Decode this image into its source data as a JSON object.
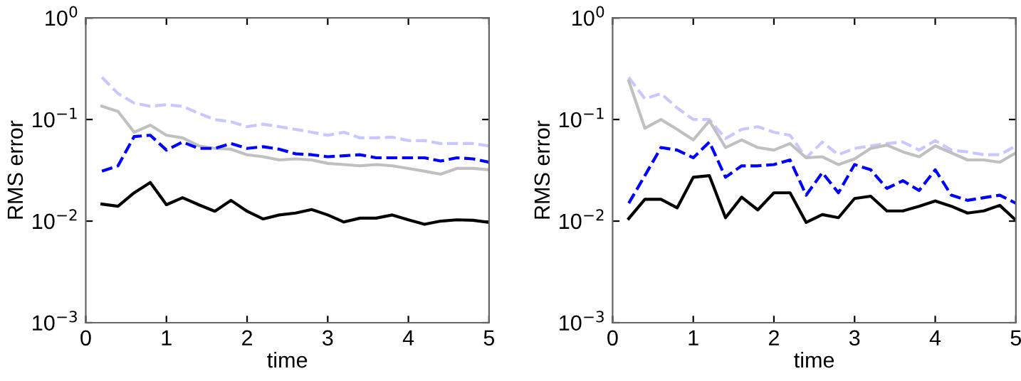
{
  "chart_data": [
    {
      "type": "line",
      "xlabel": "time",
      "ylabel": "RMS error",
      "log": "y",
      "grid": false,
      "x": [
        0.2,
        0.4,
        0.6,
        0.8,
        1.0,
        1.2,
        1.4,
        1.6,
        1.8,
        2.0,
        2.2,
        2.4,
        2.6,
        2.8,
        3.0,
        3.2,
        3.4,
        3.6,
        3.8,
        4.0,
        4.2,
        4.4,
        4.6,
        4.8,
        5.0
      ],
      "xlim": [
        0,
        5
      ],
      "xticks": [
        0,
        1,
        2,
        3,
        4,
        5
      ],
      "ylim": [
        0.001,
        1
      ],
      "yticks": [
        {
          "value": 0.001,
          "label": "10$^{−3}$"
        },
        {
          "value": 0.01,
          "label": "10$^{−2}$"
        },
        {
          "value": 0.1,
          "label": "10$^{−1}$"
        },
        {
          "value": 1,
          "label": "10$^{0}$"
        }
      ],
      "series": [
        {
          "color": "#c8c8ff",
          "line_style": "dashed",
          "values": [
            0.26,
            0.18,
            0.145,
            0.135,
            0.14,
            0.135,
            0.115,
            0.1,
            0.095,
            0.085,
            0.09,
            0.085,
            0.08,
            0.075,
            0.07,
            0.075,
            0.066,
            0.066,
            0.067,
            0.062,
            0.062,
            0.058,
            0.058,
            0.058,
            0.055
          ]
        },
        {
          "color": "#c0c0c0",
          "line_style": "solid",
          "values": [
            0.135,
            0.12,
            0.075,
            0.088,
            0.07,
            0.066,
            0.055,
            0.052,
            0.051,
            0.045,
            0.043,
            0.04,
            0.041,
            0.04,
            0.037,
            0.036,
            0.035,
            0.036,
            0.035,
            0.033,
            0.031,
            0.029,
            0.033,
            0.033,
            0.032
          ]
        },
        {
          "color": "#0000ff",
          "line_style": "dashed",
          "values": [
            0.031,
            0.035,
            0.068,
            0.07,
            0.05,
            0.06,
            0.052,
            0.052,
            0.058,
            0.052,
            0.054,
            0.051,
            0.046,
            0.045,
            0.043,
            0.044,
            0.045,
            0.042,
            0.042,
            0.042,
            0.042,
            0.039,
            0.042,
            0.041,
            0.038
          ]
        },
        {
          "color": "#000000",
          "line_style": "solid",
          "values": [
            0.0147,
            0.014,
            0.019,
            0.024,
            0.0145,
            0.017,
            0.0145,
            0.0125,
            0.016,
            0.0125,
            0.0105,
            0.0115,
            0.012,
            0.013,
            0.0115,
            0.0098,
            0.0107,
            0.0107,
            0.0115,
            0.0103,
            0.0093,
            0.01,
            0.0103,
            0.0102,
            0.0097
          ]
        }
      ]
    },
    {
      "type": "line",
      "xlabel": "time",
      "ylabel": "RMS error",
      "log": "y",
      "grid": false,
      "x": [
        0.2,
        0.4,
        0.6,
        0.8,
        1.0,
        1.2,
        1.4,
        1.6,
        1.8,
        2.0,
        2.2,
        2.4,
        2.6,
        2.8,
        3.0,
        3.2,
        3.4,
        3.6,
        3.8,
        4.0,
        4.2,
        4.4,
        4.6,
        4.8,
        5.0
      ],
      "xlim": [
        0,
        5
      ],
      "xticks": [
        0,
        1,
        2,
        3,
        4,
        5
      ],
      "ylim": [
        0.001,
        1
      ],
      "yticks": [
        {
          "value": 0.001,
          "label": "10$^{−3}$"
        },
        {
          "value": 0.01,
          "label": "10$^{−2}$"
        },
        {
          "value": 0.1,
          "label": "10$^{−1}$"
        },
        {
          "value": 1,
          "label": "10$^{0}$"
        }
      ],
      "series": [
        {
          "color": "#c8c8ff",
          "line_style": "dashed",
          "values": [
            0.26,
            0.16,
            0.18,
            0.13,
            0.1,
            0.1,
            0.065,
            0.08,
            0.085,
            0.075,
            0.07,
            0.042,
            0.06,
            0.045,
            0.052,
            0.055,
            0.058,
            0.06,
            0.05,
            0.062,
            0.05,
            0.048,
            0.045,
            0.045,
            0.055
          ]
        },
        {
          "color": "#c0c0c0",
          "line_style": "solid",
          "values": [
            0.24,
            0.082,
            0.1,
            0.08,
            0.063,
            0.097,
            0.053,
            0.063,
            0.053,
            0.05,
            0.058,
            0.042,
            0.043,
            0.036,
            0.041,
            0.052,
            0.056,
            0.048,
            0.043,
            0.055,
            0.047,
            0.04,
            0.04,
            0.038,
            0.047
          ]
        },
        {
          "color": "#0000ff",
          "line_style": "dashed",
          "values": [
            0.015,
            0.028,
            0.053,
            0.05,
            0.042,
            0.06,
            0.027,
            0.035,
            0.035,
            0.036,
            0.04,
            0.018,
            0.03,
            0.019,
            0.036,
            0.032,
            0.021,
            0.025,
            0.02,
            0.032,
            0.018,
            0.016,
            0.017,
            0.018,
            0.015
          ]
        },
        {
          "color": "#000000",
          "line_style": "solid",
          "values": [
            0.0106,
            0.0164,
            0.0164,
            0.0135,
            0.027,
            0.028,
            0.0108,
            0.0172,
            0.0129,
            0.019,
            0.019,
            0.0097,
            0.0116,
            0.0108,
            0.0167,
            0.0176,
            0.0126,
            0.0126,
            0.014,
            0.0158,
            0.014,
            0.012,
            0.0126,
            0.0143,
            0.0102
          ]
        }
      ]
    }
  ]
}
